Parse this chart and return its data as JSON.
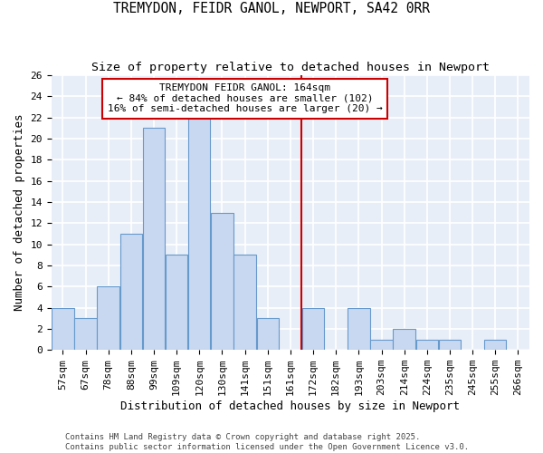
{
  "title": "TREMYDON, FEIDR GANOL, NEWPORT, SA42 0RR",
  "subtitle": "Size of property relative to detached houses in Newport",
  "xlabel": "Distribution of detached houses by size in Newport",
  "ylabel": "Number of detached properties",
  "bar_color": "#c8d8f0",
  "bar_edge_color": "#6699cc",
  "background_color": "#e8eef8",
  "grid_color": "white",
  "categories": [
    "57sqm",
    "67sqm",
    "78sqm",
    "88sqm",
    "99sqm",
    "109sqm",
    "120sqm",
    "130sqm",
    "141sqm",
    "151sqm",
    "161sqm",
    "172sqm",
    "182sqm",
    "193sqm",
    "203sqm",
    "214sqm",
    "224sqm",
    "235sqm",
    "245sqm",
    "255sqm",
    "266sqm"
  ],
  "values": [
    4,
    3,
    6,
    11,
    21,
    9,
    22,
    13,
    9,
    3,
    0,
    4,
    0,
    4,
    1,
    2,
    1,
    1,
    0,
    1,
    0
  ],
  "ylim": [
    0,
    26
  ],
  "yticks": [
    0,
    2,
    4,
    6,
    8,
    10,
    12,
    14,
    16,
    18,
    20,
    22,
    24,
    26
  ],
  "vline_index": 10.5,
  "vline_color": "#cc0000",
  "annotation_text": "TREMYDON FEIDR GANOL: 164sqm\n← 84% of detached houses are smaller (102)\n16% of semi-detached houses are larger (20) →",
  "annotation_box_color": "#ffffff",
  "annotation_box_edge": "#cc0000",
  "footer_text": "Contains HM Land Registry data © Crown copyright and database right 2025.\nContains public sector information licensed under the Open Government Licence v3.0.",
  "title_fontsize": 10.5,
  "subtitle_fontsize": 9.5,
  "axis_label_fontsize": 9,
  "tick_fontsize": 8,
  "annotation_fontsize": 8,
  "footer_fontsize": 6.5
}
